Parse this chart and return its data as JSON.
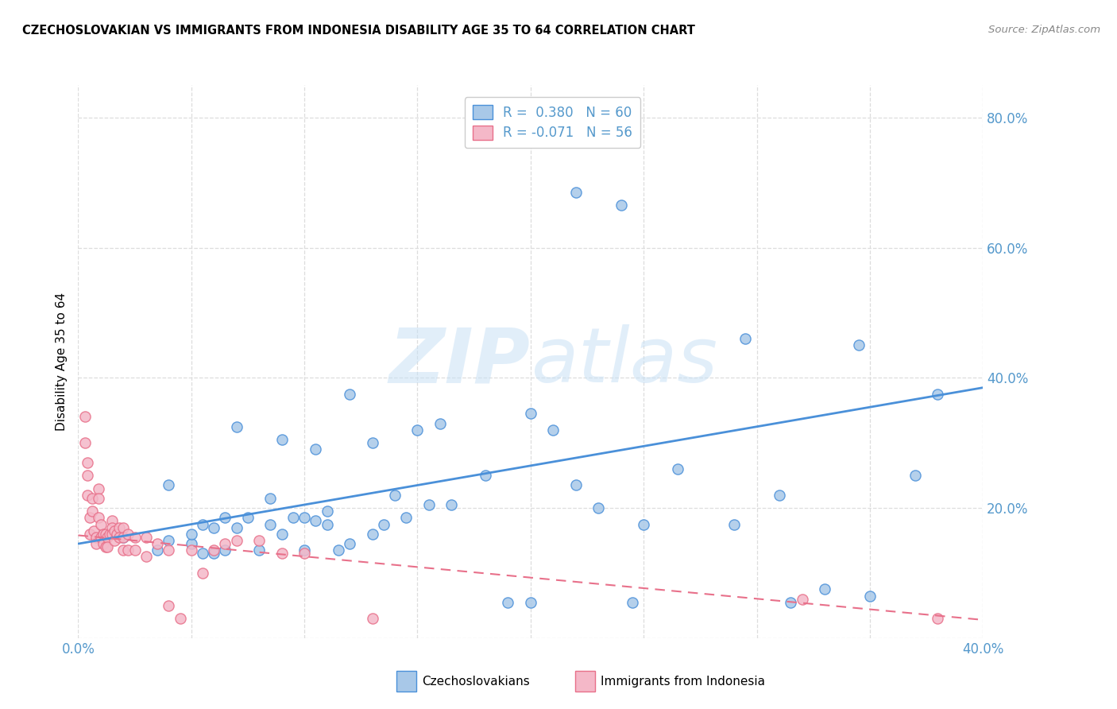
{
  "title": "CZECHOSLOVAKIAN VS IMMIGRANTS FROM INDONESIA DISABILITY AGE 35 TO 64 CORRELATION CHART",
  "source": "Source: ZipAtlas.com",
  "ylabel": "Disability Age 35 to 64",
  "xlim": [
    0.0,
    0.4
  ],
  "ylim": [
    0.0,
    0.85
  ],
  "x_ticks": [
    0.0,
    0.05,
    0.1,
    0.15,
    0.2,
    0.25,
    0.3,
    0.35,
    0.4
  ],
  "y_ticks": [
    0.0,
    0.2,
    0.4,
    0.6,
    0.8
  ],
  "color_blue": "#a8c8e8",
  "color_pink": "#f4b8c8",
  "color_blue_line": "#4a90d9",
  "color_pink_line": "#e8708a",
  "color_blue_dark": "#4a90d9",
  "color_pink_dark": "#e8708a",
  "watermark_color": "#c8dff0",
  "blue_scatter_x": [
    0.02,
    0.035,
    0.04,
    0.04,
    0.05,
    0.05,
    0.055,
    0.055,
    0.06,
    0.06,
    0.065,
    0.065,
    0.07,
    0.07,
    0.075,
    0.08,
    0.085,
    0.085,
    0.09,
    0.09,
    0.095,
    0.1,
    0.1,
    0.105,
    0.105,
    0.11,
    0.11,
    0.115,
    0.12,
    0.12,
    0.13,
    0.13,
    0.135,
    0.14,
    0.145,
    0.15,
    0.155,
    0.16,
    0.165,
    0.18,
    0.19,
    0.2,
    0.2,
    0.21,
    0.22,
    0.22,
    0.23,
    0.24,
    0.245,
    0.25,
    0.265,
    0.29,
    0.295,
    0.31,
    0.315,
    0.33,
    0.345,
    0.35,
    0.37,
    0.38
  ],
  "blue_scatter_y": [
    0.155,
    0.135,
    0.15,
    0.235,
    0.145,
    0.16,
    0.13,
    0.175,
    0.13,
    0.17,
    0.135,
    0.185,
    0.17,
    0.325,
    0.185,
    0.135,
    0.175,
    0.215,
    0.16,
    0.305,
    0.185,
    0.135,
    0.185,
    0.18,
    0.29,
    0.175,
    0.195,
    0.135,
    0.145,
    0.375,
    0.16,
    0.3,
    0.175,
    0.22,
    0.185,
    0.32,
    0.205,
    0.33,
    0.205,
    0.25,
    0.055,
    0.345,
    0.055,
    0.32,
    0.235,
    0.685,
    0.2,
    0.665,
    0.055,
    0.175,
    0.26,
    0.175,
    0.46,
    0.22,
    0.055,
    0.075,
    0.45,
    0.065,
    0.25,
    0.375
  ],
  "pink_scatter_x": [
    0.003,
    0.003,
    0.004,
    0.004,
    0.004,
    0.005,
    0.005,
    0.006,
    0.006,
    0.007,
    0.008,
    0.008,
    0.009,
    0.009,
    0.009,
    0.01,
    0.01,
    0.011,
    0.011,
    0.012,
    0.012,
    0.013,
    0.013,
    0.014,
    0.015,
    0.015,
    0.015,
    0.016,
    0.016,
    0.017,
    0.018,
    0.018,
    0.02,
    0.02,
    0.02,
    0.022,
    0.022,
    0.025,
    0.025,
    0.03,
    0.03,
    0.035,
    0.04,
    0.04,
    0.045,
    0.05,
    0.055,
    0.06,
    0.065,
    0.07,
    0.08,
    0.09,
    0.1,
    0.13,
    0.32,
    0.38
  ],
  "pink_scatter_y": [
    0.34,
    0.3,
    0.27,
    0.25,
    0.22,
    0.185,
    0.16,
    0.215,
    0.195,
    0.165,
    0.155,
    0.145,
    0.23,
    0.215,
    0.185,
    0.175,
    0.155,
    0.16,
    0.145,
    0.16,
    0.14,
    0.155,
    0.14,
    0.16,
    0.18,
    0.17,
    0.16,
    0.165,
    0.15,
    0.16,
    0.17,
    0.155,
    0.17,
    0.155,
    0.135,
    0.16,
    0.135,
    0.155,
    0.135,
    0.155,
    0.125,
    0.145,
    0.135,
    0.05,
    0.03,
    0.135,
    0.1,
    0.135,
    0.145,
    0.15,
    0.15,
    0.13,
    0.13,
    0.03,
    0.06,
    0.03
  ],
  "blue_line_x": [
    0.0,
    0.4
  ],
  "blue_line_y": [
    0.145,
    0.385
  ],
  "pink_line_x": [
    0.0,
    0.4
  ],
  "pink_line_y": [
    0.158,
    0.028
  ],
  "background_color": "#ffffff",
  "grid_color": "#dddddd",
  "tick_color": "#5599cc"
}
